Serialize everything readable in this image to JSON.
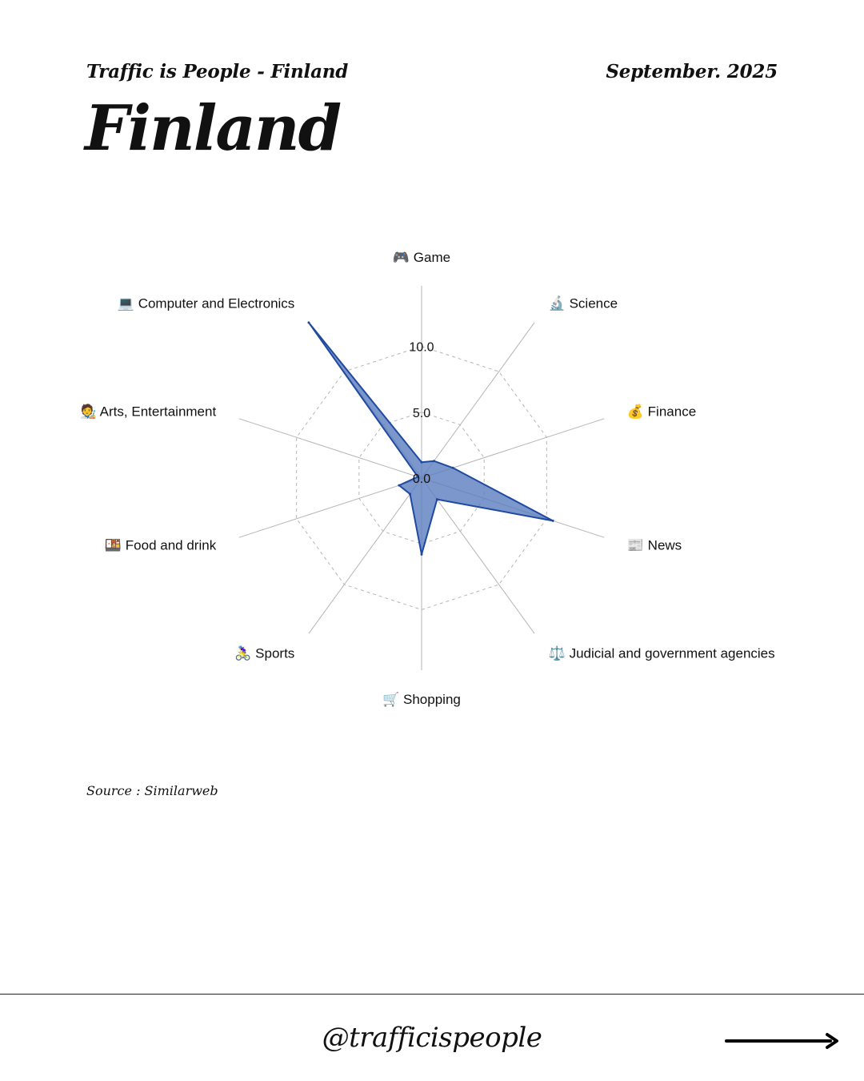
{
  "header": {
    "left": "Traffic is People - Finland",
    "right": "September. 2025"
  },
  "title": "Finland",
  "source": "Source : Similarweb",
  "footer": {
    "handle": "@trafficispeople",
    "next_icon": "arrow-right-icon"
  },
  "colors": {
    "fill": "#5a7dbf",
    "stroke": "#1f4aa0",
    "grid": "#b5b5b5"
  },
  "chart_data": {
    "type": "radar",
    "categories": [
      "🎮 Game",
      "🔬 Science",
      "💰 Finance",
      "📰 News",
      "⚖️ Judicial and government agencies",
      "🛒 Shopping",
      "🚴‍♀️ Sports",
      "🍱 Food and drink",
      "🧑‍🎨 Arts, Entertainment",
      "💻 Computer and Electronics"
    ],
    "values": [
      1.2,
      1.6,
      2.5,
      10.5,
      2.0,
      5.8,
      1.5,
      1.8,
      0.3,
      14.6
    ],
    "rlim": [
      0,
      14.6
    ],
    "ticks": [
      0.0,
      5.0,
      10.0
    ],
    "tick_labels": [
      "0.0",
      "5.0",
      "10.0"
    ],
    "grid": true
  }
}
